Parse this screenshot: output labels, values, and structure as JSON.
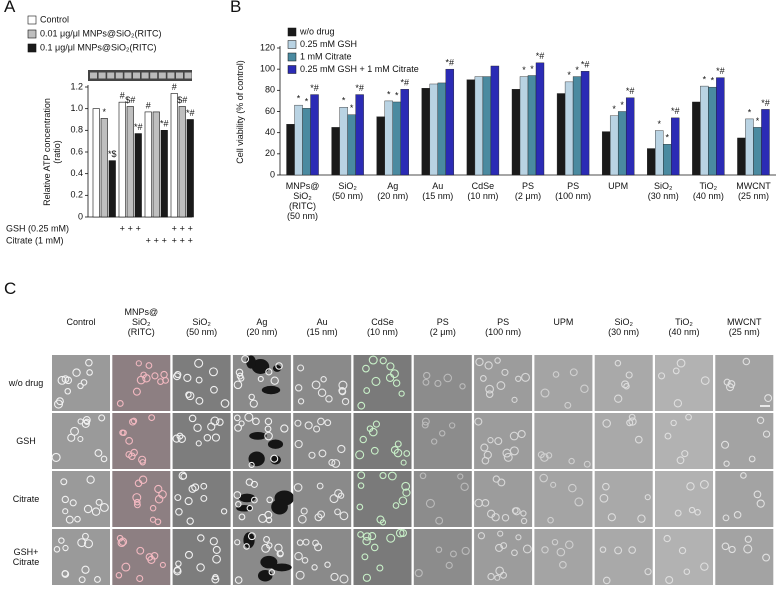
{
  "chart_data": [
    {
      "type": "bar",
      "panel": "A",
      "ylabel": "Relative ATP concentration\n(ratio)",
      "categories": [
        null,
        null,
        null,
        null
      ],
      "series": [
        {
          "name": "Control",
          "color": "#ffffff",
          "values": [
            1.0,
            1.06,
            0.97,
            1.14
          ],
          "annotations": [
            null,
            "#",
            "#",
            "#"
          ]
        },
        {
          "name": "0.01 μg/μl MNPs@SiO₂(RITC)",
          "color": "#bfbfbf",
          "values": [
            0.91,
            1.02,
            0.97,
            1.02
          ],
          "annotations": [
            "*",
            "$#",
            null,
            "$#"
          ]
        },
        {
          "name": "0.1  μg/μl MNPs@SiO₂(RITC)",
          "color": "#1a1a1a",
          "values": [
            0.52,
            0.77,
            0.8,
            0.9
          ],
          "annotations": [
            "*$",
            "*#",
            "*#",
            "*#"
          ]
        }
      ],
      "treatments": [
        {
          "label": "GSH (0.25 mM)",
          "marks": [
            null,
            null,
            null,
            "+",
            "+",
            "+",
            null,
            null,
            null,
            "+",
            "+",
            "+"
          ]
        },
        {
          "label": "Citrate (1 mM)",
          "marks": [
            null,
            null,
            null,
            null,
            null,
            null,
            "+",
            "+",
            "+",
            "+",
            "+",
            "+"
          ]
        }
      ],
      "ylim": [
        0,
        1.2
      ],
      "yticks": [
        0,
        0.2,
        0.4,
        0.6,
        0.8,
        {
          "value": 1,
          "label": "1.0"
        },
        1.2
      ]
    },
    {
      "type": "bar",
      "panel": "B",
      "ylabel": "Cell viability (% of control)",
      "categories": [
        "MNPs@\nSiO₂\n(RITC)\n(50 nm)",
        "SiO₂\n(50 nm)",
        "Ag\n(20 nm)",
        "Au\n(15 nm)",
        "CdSe\n(10 nm)",
        "PS\n(2 μm)",
        "PS\n(100 nm)",
        "UPM",
        "SiO₂\n(30 nm)",
        "TiO₂\n(40 nm)",
        "MWCNT\n(25 nm)"
      ],
      "series": [
        {
          "name": "w/o drug",
          "color": "#1a1a1a",
          "values": [
            48,
            45,
            55,
            82,
            90,
            81,
            77,
            41,
            25,
            69,
            35
          ],
          "annotations": [
            null,
            null,
            null,
            null,
            null,
            null,
            null,
            null,
            null,
            null,
            null
          ]
        },
        {
          "name": "0.25 mM GSH",
          "color": "#b9d3e3",
          "values": [
            66,
            64,
            70,
            86,
            93,
            93,
            88,
            56,
            42,
            84,
            53
          ],
          "annotations": [
            "*",
            "*",
            "*",
            null,
            null,
            "*",
            "*",
            "*",
            "*",
            "*",
            "*"
          ]
        },
        {
          "name": "1 mM Citrate",
          "color": "#4a8aa0",
          "values": [
            63,
            57,
            69,
            87,
            93,
            94,
            93,
            60,
            29,
            83,
            45
          ],
          "annotations": [
            "*",
            "*",
            "*",
            null,
            null,
            "*",
            "*",
            "*",
            "*",
            "*",
            "*"
          ]
        },
        {
          "name": "0.25 mM GSH + 1 mM Citrate",
          "color": "#2b2bb5",
          "values": [
            76,
            76,
            81,
            100,
            103,
            106,
            98,
            73,
            54,
            92,
            62
          ],
          "annotations": [
            "*#",
            "*#",
            "*#",
            "*#",
            null,
            "*#",
            "*#",
            "*#",
            "*#",
            "*#",
            "*#"
          ]
        }
      ],
      "ylim": [
        0,
        120
      ],
      "yticks": [
        0,
        20,
        40,
        60,
        80,
        100,
        120
      ]
    }
  ],
  "micrographs": {
    "panel": "C",
    "columns": [
      "Control",
      "MNPs@\nSiO₂\n(RITC)",
      "SiO₂\n(50 nm)",
      "Ag\n(20 nm)",
      "Au\n(15 nm)",
      "CdSe\n(10 nm)",
      "PS\n(2 μm)",
      "PS\n(100 nm)",
      "UPM",
      "SiO₂\n(30 nm)",
      "TiO₂\n(40 nm)",
      "MWCNT\n(25 nm)"
    ],
    "rows": [
      "w/o drug",
      "GSH",
      "Citrate",
      "GSH+\nCitrate"
    ]
  }
}
